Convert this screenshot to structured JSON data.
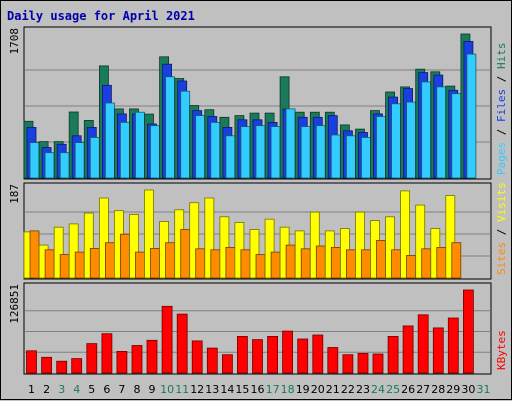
{
  "chart_data": [
    {
      "type": "bar",
      "title": "Daily usage for April 2021",
      "categories": [
        "1",
        "2",
        "3",
        "4",
        "5",
        "6",
        "7",
        "8",
        "9",
        "10",
        "11",
        "12",
        "13",
        "14",
        "15",
        "16",
        "17",
        "18",
        "19",
        "20",
        "21",
        "22",
        "23",
        "24",
        "25",
        "26",
        "27",
        "28",
        "29",
        "30",
        "31"
      ],
      "weekend_days": [
        "3",
        "4",
        "10",
        "11",
        "17",
        "18",
        "24",
        "25",
        "31"
      ],
      "y_max_label": "1708",
      "ylim": [
        0,
        1708
      ],
      "legend": [
        {
          "name": "Hits",
          "color": "#1a7a5a"
        },
        {
          "name": "Files",
          "color": "#1a3fe0"
        },
        {
          "name": "Pages",
          "color": "#33ccff"
        }
      ],
      "legend_placement": "right-vertical",
      "series": [
        {
          "name": "Hits",
          "color": "#1a7a5a",
          "values": [
            673,
            432,
            432,
            783,
            683,
            1330,
            820,
            820,
            758,
            1437,
            1180,
            860,
            810,
            720,
            740,
            770,
            770,
            1200,
            780,
            780,
            780,
            630,
            580,
            800,
            1020,
            1080,
            1290,
            1260,
            1090,
            1708,
            0
          ]
        },
        {
          "name": "Files",
          "color": "#1a3fe0",
          "values": [
            600,
            362,
            400,
            500,
            600,
            1100,
            760,
            760,
            640,
            1350,
            1150,
            800,
            730,
            600,
            690,
            690,
            660,
            820,
            720,
            720,
            740,
            560,
            540,
            760,
            960,
            1060,
            1250,
            1220,
            1040,
            1620,
            0
          ]
        },
        {
          "name": "Pages",
          "color": "#33ccff",
          "values": [
            420,
            300,
            300,
            420,
            480,
            890,
            660,
            780,
            620,
            1200,
            1030,
            740,
            660,
            500,
            610,
            620,
            610,
            820,
            610,
            620,
            510,
            500,
            480,
            730,
            880,
            900,
            1140,
            1080,
            1000,
            1470,
            0
          ]
        }
      ]
    },
    {
      "type": "bar",
      "y_max_label": "187",
      "ylim": [
        0,
        187
      ],
      "legend": [
        {
          "name": "Visits",
          "color": "#ffff00"
        },
        {
          "name": "Sites",
          "color": "#ff8c00"
        }
      ],
      "legend_placement": "right-vertical",
      "series": [
        {
          "name": "Visits",
          "color": "#ffff00",
          "values": [
            98,
            70,
            108,
            115,
            138,
            170,
            143,
            135,
            187,
            120,
            145,
            160,
            170,
            130,
            118,
            103,
            125,
            108,
            100,
            140,
            100,
            105,
            140,
            122,
            130,
            185,
            155,
            105,
            175,
            0,
            0
          ]
        },
        {
          "name": "Sites",
          "color": "#ff8c00",
          "values": [
            100,
            60,
            50,
            55,
            63,
            75,
            93,
            55,
            63,
            75,
            103,
            62,
            60,
            65,
            60,
            50,
            55,
            70,
            62,
            68,
            65,
            60,
            60,
            80,
            60,
            48,
            62,
            65,
            75,
            0,
            0
          ]
        }
      ]
    },
    {
      "type": "bar",
      "y_max_label": "126851",
      "ylim": [
        0,
        126851
      ],
      "legend": [
        {
          "name": "KBytes",
          "color": "#ff0000"
        }
      ],
      "legend_placement": "right-vertical",
      "series": [
        {
          "name": "KBytes",
          "color": "#ff0000",
          "values": [
            34000,
            24000,
            18000,
            22000,
            45000,
            60000,
            33000,
            42000,
            50000,
            102000,
            90000,
            49000,
            38000,
            28000,
            56000,
            51000,
            56000,
            64000,
            52000,
            58000,
            39000,
            28000,
            30000,
            29000,
            56000,
            72000,
            89000,
            69000,
            84000,
            126851,
            0
          ]
        }
      ]
    }
  ]
}
